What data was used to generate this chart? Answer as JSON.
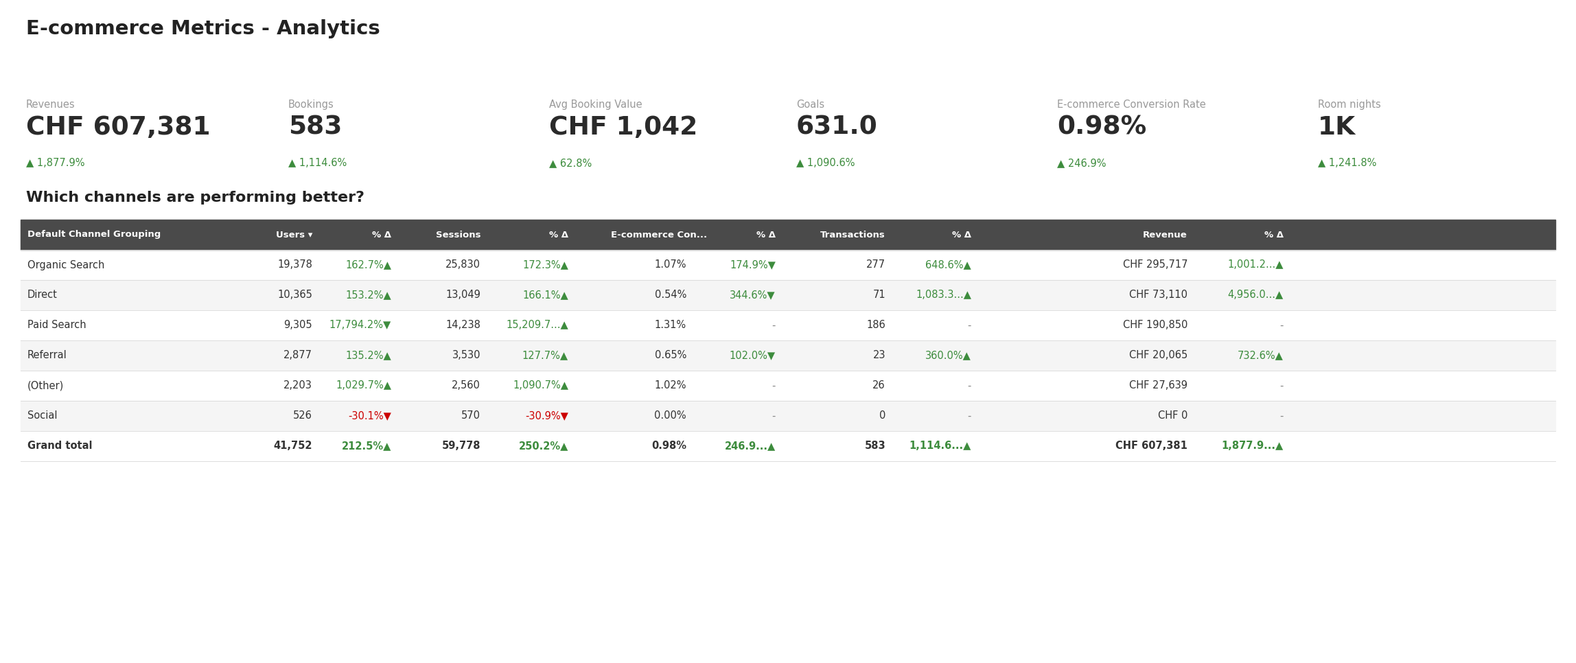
{
  "title": "E-commerce Metrics - Analytics",
  "subtitle": "Which channels are performing better?",
  "bg_color": "#ffffff",
  "metrics": [
    {
      "label": "Revenues",
      "value": "CHF 607,381",
      "change": "▲ 1,877.9%",
      "change_color": "#3d8c3d"
    },
    {
      "label": "Bookings",
      "value": "583",
      "change": "▲ 1,114.6%",
      "change_color": "#3d8c3d"
    },
    {
      "label": "Avg Booking Value",
      "value": "CHF 1,042",
      "change": "▲ 62.8%",
      "change_color": "#3d8c3d"
    },
    {
      "label": "Goals",
      "value": "631.0",
      "change": "▲ 1,090.6%",
      "change_color": "#3d8c3d"
    },
    {
      "label": "E-commerce Conversion Rate",
      "value": "0.98%",
      "change": "▲ 246.9%",
      "change_color": "#3d8c3d"
    },
    {
      "label": "Room nights",
      "value": "1K",
      "change": "▲ 1,241.8%",
      "change_color": "#3d8c3d"
    }
  ],
  "header_bg": "#4a4a4a",
  "header_fg": "#ffffff",
  "rows": [
    {
      "channel": "Organic Search",
      "users": "19,378",
      "users_delta": "162.7%▲",
      "users_delta_color": "#3d8c3d",
      "sessions": "25,830",
      "sessions_delta": "172.3%▲",
      "sessions_delta_color": "#3d8c3d",
      "ecom": "1.07%",
      "ecom_delta": "174.9%▼",
      "ecom_delta_color": "#3d8c3d",
      "transactions": "277",
      "trans_delta": "648.6%▲",
      "trans_delta_color": "#3d8c3d",
      "revenue": "CHF 295,717",
      "rev_delta": "1,001.2...▲",
      "rev_delta_color": "#3d8c3d",
      "bold": false,
      "bg": "#ffffff"
    },
    {
      "channel": "Direct",
      "users": "10,365",
      "users_delta": "153.2%▲",
      "users_delta_color": "#3d8c3d",
      "sessions": "13,049",
      "sessions_delta": "166.1%▲",
      "sessions_delta_color": "#3d8c3d",
      "ecom": "0.54%",
      "ecom_delta": "344.6%▼",
      "ecom_delta_color": "#3d8c3d",
      "transactions": "71",
      "trans_delta": "1,083.3...▲",
      "trans_delta_color": "#3d8c3d",
      "revenue": "CHF 73,110",
      "rev_delta": "4,956.0...▲",
      "rev_delta_color": "#3d8c3d",
      "bold": false,
      "bg": "#f5f5f5"
    },
    {
      "channel": "Paid Search",
      "users": "9,305",
      "users_delta": "17,794.2%▼",
      "users_delta_color": "#3d8c3d",
      "sessions": "14,238",
      "sessions_delta": "15,209.7...▲",
      "sessions_delta_color": "#3d8c3d",
      "ecom": "1.31%",
      "ecom_delta": "-",
      "ecom_delta_color": "#888888",
      "transactions": "186",
      "trans_delta": "-",
      "trans_delta_color": "#888888",
      "revenue": "CHF 190,850",
      "rev_delta": "-",
      "rev_delta_color": "#888888",
      "bold": false,
      "bg": "#ffffff"
    },
    {
      "channel": "Referral",
      "users": "2,877",
      "users_delta": "135.2%▲",
      "users_delta_color": "#3d8c3d",
      "sessions": "3,530",
      "sessions_delta": "127.7%▲",
      "sessions_delta_color": "#3d8c3d",
      "ecom": "0.65%",
      "ecom_delta": "102.0%▼",
      "ecom_delta_color": "#3d8c3d",
      "transactions": "23",
      "trans_delta": "360.0%▲",
      "trans_delta_color": "#3d8c3d",
      "revenue": "CHF 20,065",
      "rev_delta": "732.6%▲",
      "rev_delta_color": "#3d8c3d",
      "bold": false,
      "bg": "#f5f5f5"
    },
    {
      "channel": "(Other)",
      "users": "2,203",
      "users_delta": "1,029.7%▲",
      "users_delta_color": "#3d8c3d",
      "sessions": "2,560",
      "sessions_delta": "1,090.7%▲",
      "sessions_delta_color": "#3d8c3d",
      "ecom": "1.02%",
      "ecom_delta": "-",
      "ecom_delta_color": "#888888",
      "transactions": "26",
      "trans_delta": "-",
      "trans_delta_color": "#888888",
      "revenue": "CHF 27,639",
      "rev_delta": "-",
      "rev_delta_color": "#888888",
      "bold": false,
      "bg": "#ffffff"
    },
    {
      "channel": "Social",
      "users": "526",
      "users_delta": "-30.1%▼",
      "users_delta_color": "#cc0000",
      "sessions": "570",
      "sessions_delta": "-30.9%▼",
      "sessions_delta_color": "#cc0000",
      "ecom": "0.00%",
      "ecom_delta": "-",
      "ecom_delta_color": "#888888",
      "transactions": "0",
      "trans_delta": "-",
      "trans_delta_color": "#888888",
      "revenue": "CHF 0",
      "rev_delta": "-",
      "rev_delta_color": "#888888",
      "bold": false,
      "bg": "#f5f5f5"
    },
    {
      "channel": "Grand total",
      "users": "41,752",
      "users_delta": "212.5%▲",
      "users_delta_color": "#3d8c3d",
      "sessions": "59,778",
      "sessions_delta": "250.2%▲",
      "sessions_delta_color": "#3d8c3d",
      "ecom": "0.98%",
      "ecom_delta": "246.9...▲",
      "ecom_delta_color": "#3d8c3d",
      "transactions": "583",
      "trans_delta": "1,114.6...▲",
      "trans_delta_color": "#3d8c3d",
      "revenue": "CHF 607,381",
      "rev_delta": "1,877.9...▲",
      "rev_delta_color": "#3d8c3d",
      "bold": true,
      "bg": "#ffffff"
    }
  ],
  "fig_width": 22.96,
  "fig_height": 9.66,
  "dpi": 100
}
